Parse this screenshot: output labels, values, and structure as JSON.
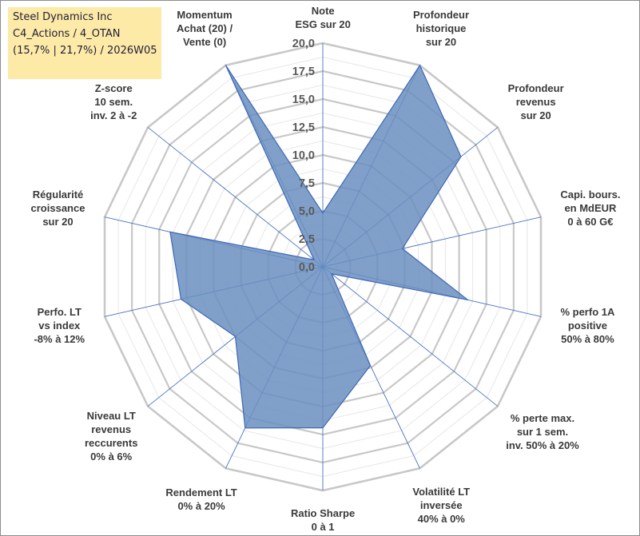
{
  "title_box": {
    "line1": "Steel Dynamics Inc",
    "line2": "C4_Actions / 4_OTAN",
    "line3": "(15,7% | 21,7%) / 2026W05"
  },
  "colors": {
    "grid": "#c8c8c8",
    "spoke": "#4a72c4",
    "fill": "#6a8fbf",
    "stroke": "#3d68b8"
  },
  "chart_data": {
    "type": "radar",
    "title": "Steel Dynamics Inc",
    "rlim": [
      0,
      20
    ],
    "grid": true,
    "r_ticks": [
      "0,0",
      "2,5",
      "5,0",
      "7,5",
      "10,0",
      "12,5",
      "15,0",
      "17,5",
      "20,0"
    ],
    "r_tick_values": [
      0,
      2.5,
      5,
      7.5,
      10,
      12.5,
      15,
      17.5,
      20
    ],
    "axes": [
      {
        "label": [
          "Note",
          "ESG sur 20"
        ],
        "value": 4.8
      },
      {
        "label": [
          "Profondeur",
          "historique",
          "sur 20"
        ],
        "value": 20.0
      },
      {
        "label": [
          "Profondeur",
          "revenus",
          "sur 20"
        ],
        "value": 15.8
      },
      {
        "label": [
          "Capi. bours.",
          "en MdEUR",
          "0 à 60 G€"
        ],
        "value": 7.3
      },
      {
        "label": [
          "% perfo 1A",
          "positive",
          "50% à 80%"
        ],
        "value": 13.3
      },
      {
        "label": [
          "% perte max.",
          "sur 1 sem.",
          "inv. 50% à 20%"
        ],
        "value": 1.0
      },
      {
        "label": [
          "Volatilité LT",
          "inversée",
          "40% à 0%"
        ],
        "value": 9.8
      },
      {
        "label": [
          "Ratio Sharpe",
          "0 à 1"
        ],
        "value": 14.4
      },
      {
        "label": [
          "Rendement LT",
          "0% à 20%"
        ],
        "value": 16.0
      },
      {
        "label": [
          "Niveau LT",
          "revenus",
          "reccurents",
          "0% à 6%"
        ],
        "value": 10.0
      },
      {
        "label": [
          "Perfo. LT",
          "vs index",
          "-8% à 12%"
        ],
        "value": 13.0
      },
      {
        "label": [
          "Régularité",
          "croissance",
          "sur 20"
        ],
        "value": 14.0
      },
      {
        "label": [
          "Z-score",
          "10 sem.",
          "inv. 2 à -2"
        ],
        "value": 1.0
      },
      {
        "label": [
          "Momentum",
          "Achat (20) /",
          "Vente (0)"
        ],
        "value": 20.0
      }
    ]
  }
}
